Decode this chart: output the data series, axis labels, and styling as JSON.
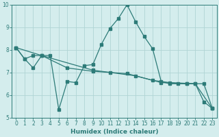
{
  "xlabel": "Humidex (Indice chaleur)",
  "xlim": [
    -0.5,
    23.5
  ],
  "ylim": [
    5,
    10
  ],
  "yticks": [
    5,
    6,
    7,
    8,
    9,
    10
  ],
  "xticks": [
    0,
    1,
    2,
    3,
    4,
    5,
    6,
    7,
    8,
    9,
    10,
    11,
    12,
    13,
    14,
    15,
    16,
    17,
    18,
    19,
    20,
    21,
    22,
    23
  ],
  "background_color": "#d4eded",
  "grid_color": "#b0d4d4",
  "line_color": "#2d7b78",
  "line1_x": [
    0,
    1,
    2,
    3,
    4,
    5,
    6,
    7,
    8,
    9,
    10,
    11,
    12,
    13,
    14,
    15,
    16,
    17,
    18,
    19,
    20,
    21,
    22,
    23
  ],
  "line1_y": [
    8.1,
    7.6,
    7.2,
    7.75,
    7.75,
    5.35,
    6.6,
    6.55,
    7.3,
    7.35,
    8.25,
    8.95,
    9.4,
    10.0,
    9.25,
    8.6,
    8.05,
    6.6,
    6.5,
    6.5,
    6.5,
    6.5,
    5.7,
    5.4
  ],
  "line2_x": [
    0,
    1,
    2,
    3,
    9,
    14,
    17,
    20,
    22,
    23
  ],
  "line2_y": [
    8.1,
    7.6,
    7.75,
    7.75,
    7.1,
    6.85,
    6.55,
    6.5,
    6.5,
    5.4
  ],
  "line3_x": [
    0,
    3,
    6,
    9,
    11,
    13,
    16,
    18,
    21,
    23
  ],
  "line3_y": [
    8.1,
    7.75,
    7.2,
    7.05,
    7.0,
    6.95,
    6.65,
    6.55,
    6.5,
    5.4
  ]
}
